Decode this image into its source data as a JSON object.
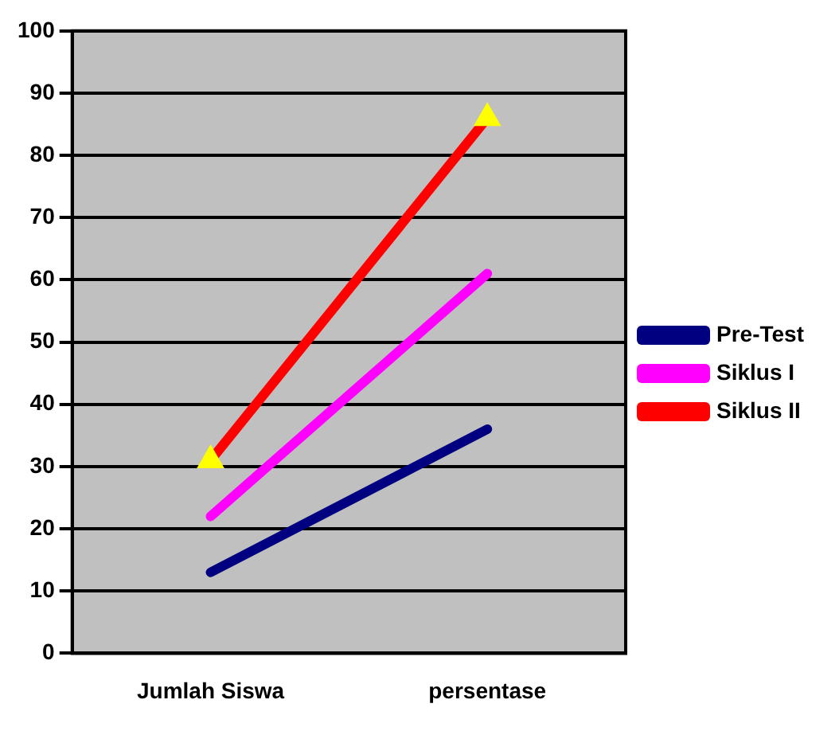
{
  "chart_data": {
    "type": "line",
    "categories": [
      "Jumlah Siswa",
      "persentase"
    ],
    "series": [
      {
        "name": "Pre-Test",
        "color": "#000080",
        "values": [
          13,
          36
        ],
        "marker": "none"
      },
      {
        "name": "Siklus I",
        "color": "#ff00ff",
        "values": [
          22,
          61
        ],
        "marker": "none"
      },
      {
        "name": "Siklus II",
        "color": "#ff0000",
        "values": [
          31,
          86
        ],
        "marker": "triangle"
      }
    ],
    "ylim": [
      0,
      100
    ],
    "yticks": [
      0,
      10,
      20,
      30,
      40,
      50,
      60,
      70,
      80,
      90,
      100
    ],
    "grid": "y",
    "legend": "right"
  }
}
